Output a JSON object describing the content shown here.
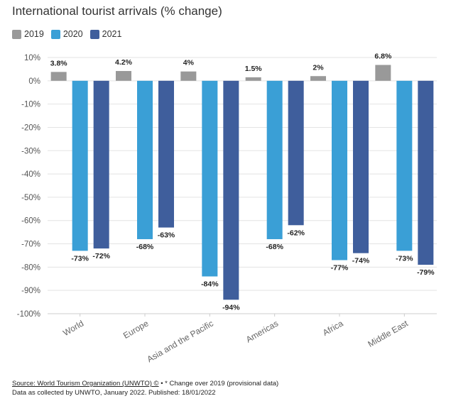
{
  "title": "International tourist arrivals (% change)",
  "legend": [
    {
      "label": "2019",
      "color": "#999999"
    },
    {
      "label": "2020",
      "color": "#3a9fd6"
    },
    {
      "label": "2021",
      "color": "#3f5e9c"
    }
  ],
  "footer": {
    "source_link": "Source: World Tourism Organization (UNWTO) ©",
    "source_rest": " • * Change over 2019 (provisional data)",
    "line2": "Data as collected by UNWTO, January 2022. Published: 18/01/2022"
  },
  "chart_data": {
    "type": "bar",
    "categories": [
      "World",
      "Europe",
      "Asia and the Pacific",
      "Americas",
      "Africa",
      "Middle East"
    ],
    "series": [
      {
        "name": "2019",
        "color": "#999999",
        "values": [
          3.8,
          4.2,
          4,
          1.5,
          2,
          6.8
        ],
        "labels": [
          "3.8%",
          "4.2%",
          "4%",
          "1.5%",
          "2%",
          "6.8%"
        ]
      },
      {
        "name": "2020",
        "color": "#3a9fd6",
        "values": [
          -73,
          -68,
          -84,
          -68,
          -77,
          -73
        ],
        "labels": [
          "-73%",
          "-68%",
          "-84%",
          "-68%",
          "-77%",
          "-73%"
        ]
      },
      {
        "name": "2021",
        "color": "#3f5e9c",
        "values": [
          -72,
          -63,
          -94,
          -62,
          -74,
          -79
        ],
        "labels": [
          "-72%",
          "-63%",
          "-94%",
          "-62%",
          "-74%",
          "-79%"
        ]
      }
    ],
    "ylim": [
      -100,
      10
    ],
    "yticks": [
      {
        "value": 10,
        "label": "10%"
      },
      {
        "value": 0,
        "label": "0%"
      },
      {
        "value": -10,
        "label": "-10%"
      },
      {
        "value": -20,
        "label": "-20%"
      },
      {
        "value": -30,
        "label": "-30%"
      },
      {
        "value": -40,
        "label": "-40%"
      },
      {
        "value": -50,
        "label": "-50%"
      },
      {
        "value": -60,
        "label": "-60%"
      },
      {
        "value": -70,
        "label": "-70%"
      },
      {
        "value": -80,
        "label": "-80%"
      },
      {
        "value": -90,
        "label": "-90%"
      },
      {
        "value": -100,
        "label": "-100%"
      }
    ],
    "grid": true,
    "legend_position": "top-left"
  }
}
